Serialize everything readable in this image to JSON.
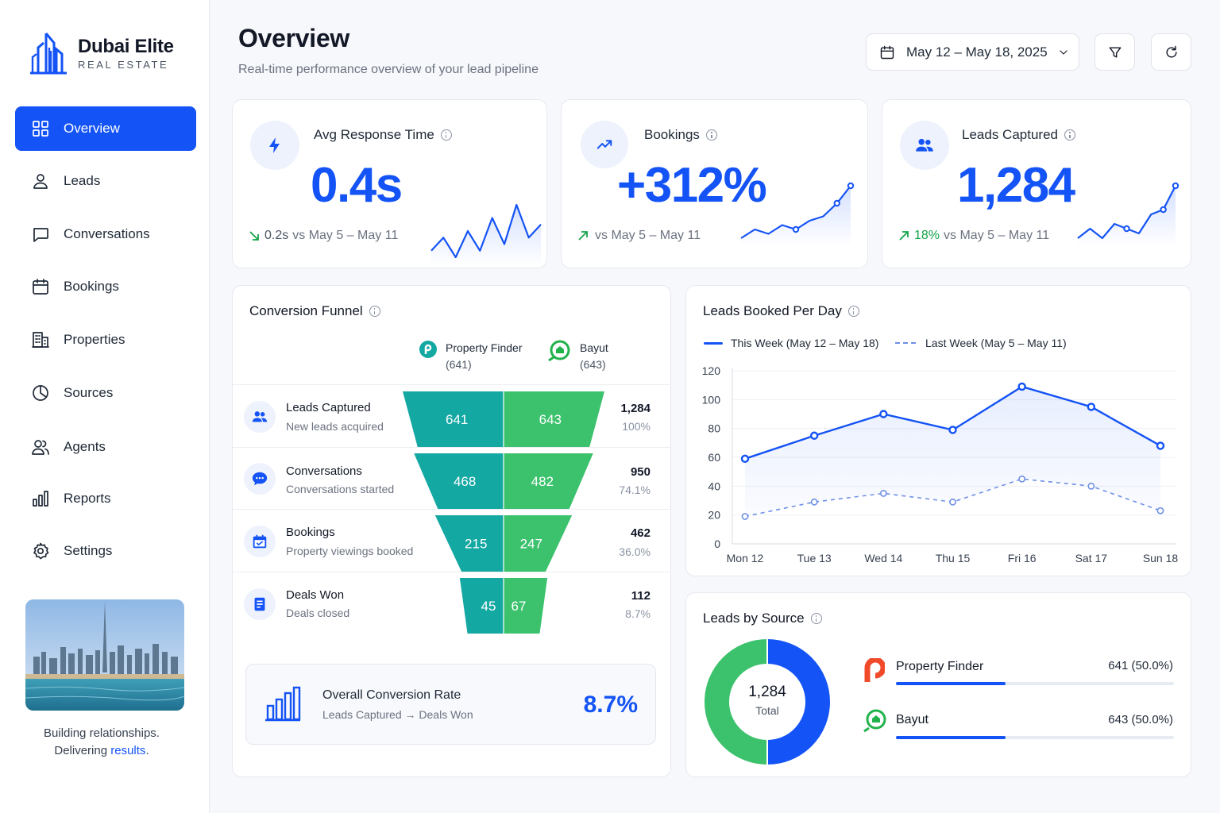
{
  "brand": {
    "name": "Dubai Elite",
    "subtitle": "REAL ESTATE"
  },
  "nav": [
    {
      "label": "Overview",
      "icon": "grid-icon",
      "active": true
    },
    {
      "label": "Leads",
      "icon": "user-icon"
    },
    {
      "label": "Conversations",
      "icon": "chat-bubble-icon"
    },
    {
      "label": "Bookings",
      "icon": "calendar-icon"
    },
    {
      "label": "Properties",
      "icon": "building-icon"
    },
    {
      "label": "Sources",
      "icon": "pie-icon"
    },
    {
      "label": "Agents",
      "icon": "users-icon"
    },
    {
      "label": "Reports",
      "icon": "bar-chart-icon"
    },
    {
      "label": "Settings",
      "icon": "gear-icon"
    }
  ],
  "tagline": {
    "line1": "Building relationships.",
    "line2_prefix": "Delivering ",
    "line2_highlight": "results",
    "line2_suffix": "."
  },
  "header": {
    "title": "Overview",
    "subtitle": "Real-time performance overview of your lead pipeline",
    "date_range": "May 12 – May 18, 2025"
  },
  "kpis": {
    "response": {
      "label": "Avg Response Time",
      "value": "0.4s",
      "delta": "0.2s",
      "compare": "vs May 5 – May 11",
      "trend": [
        4,
        6,
        3,
        7,
        4,
        9,
        5,
        11,
        6,
        8
      ]
    },
    "bookings": {
      "label": "Bookings",
      "value": "+312%",
      "delta": "",
      "compare": "vs May 5 – May 11",
      "trend": [
        2,
        4,
        3,
        5,
        4,
        6,
        7,
        10,
        14
      ]
    },
    "leads": {
      "label": "Leads Captured",
      "value": "1,284",
      "delta": "18%",
      "compare": "vs May 5 – May 11",
      "trend": [
        3,
        5,
        3,
        6,
        5,
        4,
        8,
        9,
        14
      ]
    }
  },
  "funnel": {
    "title": "Conversion Funnel",
    "sources": [
      {
        "name": "Property Finder",
        "count": "(641)"
      },
      {
        "name": "Bayut",
        "count": "(643)"
      }
    ],
    "stages": [
      {
        "name": "Leads Captured",
        "desc": "New leads acquired",
        "pf": 641,
        "bayut": 643,
        "total": "1,284",
        "pct": "100%"
      },
      {
        "name": "Conversations",
        "desc": "Conversations started",
        "pf": 468,
        "bayut": 482,
        "total": "950",
        "pct": "74.1%"
      },
      {
        "name": "Bookings",
        "desc": "Property viewings booked",
        "pf": 215,
        "bayut": 247,
        "total": "462",
        "pct": "36.0%"
      },
      {
        "name": "Deals Won",
        "desc": "Deals closed",
        "pf": 45,
        "bayut": 67,
        "total": "112",
        "pct": "8.7%"
      }
    ],
    "conversion": {
      "title": "Overall Conversion Rate",
      "subtitle": "Leads Captured → Deals Won",
      "value": "8.7%"
    }
  },
  "chart_data": {
    "type": "line",
    "title": "Leads Booked Per Day",
    "categories": [
      "Mon 12",
      "Tue 13",
      "Wed 14",
      "Thu 15",
      "Fri 16",
      "Sat 17",
      "Sun 18"
    ],
    "series": [
      {
        "name": "This Week (May 12 – May 18)",
        "values": [
          59,
          75,
          90,
          79,
          109,
          95,
          68
        ],
        "color": "#1453f5",
        "style": "solid"
      },
      {
        "name": "Last Week (May 5 – May 11)",
        "values": [
          19,
          29,
          35,
          29,
          45,
          40,
          23
        ],
        "color": "#6e8fe6",
        "style": "dashed"
      }
    ],
    "ylim": [
      0,
      120
    ],
    "yticks": [
      0,
      20,
      40,
      60,
      80,
      100,
      120
    ],
    "grid": true,
    "legend": "top-left"
  },
  "leads_by_source": {
    "title": "Leads by Source",
    "total": "1,284",
    "total_label": "Total",
    "items": [
      {
        "name": "Property Finder",
        "value": "641 (50.0%)",
        "share": 0.5,
        "color": "#1453f5"
      },
      {
        "name": "Bayut",
        "value": "643 (50.0%)",
        "share": 0.5,
        "color": "#3cc26d"
      }
    ]
  },
  "colors": {
    "accent": "#1453f5",
    "pf_teal": "#14a8a3",
    "bayut_green": "#3cc26d",
    "up": "#16a34a"
  }
}
